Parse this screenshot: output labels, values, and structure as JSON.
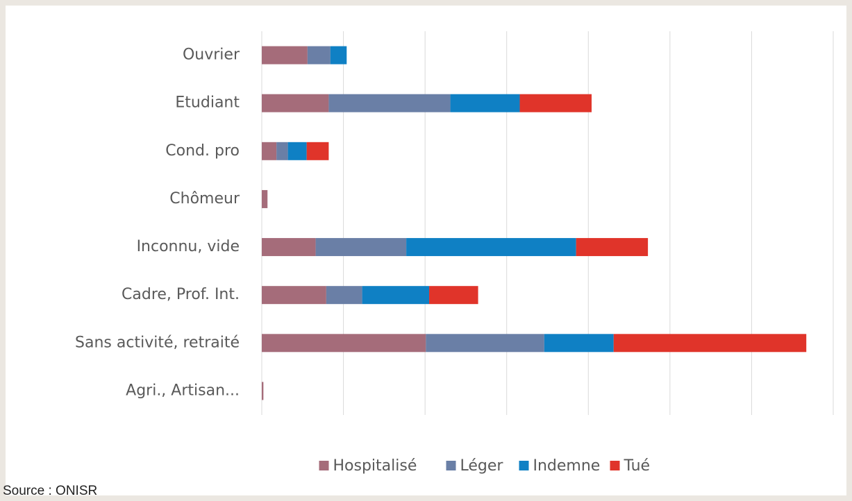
{
  "chart_data": {
    "type": "stacked_bar_horizontal",
    "categories": [
      "Ouvrier",
      "Etudiant",
      "Cond. pro",
      "Chômeur",
      "Inconnu, vide",
      "Cadre, Prof. Int.",
      "Sans activité, retraité",
      "Agri., Artisan..."
    ],
    "series": [
      {
        "name": "Hospitalisé",
        "color": "#a56c7a",
        "values": [
          5.6,
          8.2,
          1.8,
          0.7,
          6.6,
          7.9,
          20.1,
          0.2
        ]
      },
      {
        "name": "Léger",
        "color": "#6a7fa6",
        "values": [
          2.8,
          14.9,
          1.4,
          0,
          11.1,
          4.4,
          14.5,
          0
        ]
      },
      {
        "name": "Indemne",
        "color": "#0f80c4",
        "values": [
          2.0,
          8.5,
          2.3,
          0,
          20.8,
          8.2,
          8.5,
          0
        ]
      },
      {
        "name": "Tué",
        "color": "#e0342a",
        "values": [
          0,
          8.8,
          2.7,
          0,
          8.8,
          6.0,
          23.6,
          0
        ]
      }
    ],
    "xlim": [
      0,
      70
    ],
    "xticks": [
      0,
      10,
      20,
      30,
      40,
      50,
      60,
      70
    ],
    "grid": true,
    "legend": "bottom",
    "source": "Source : ONISR"
  }
}
